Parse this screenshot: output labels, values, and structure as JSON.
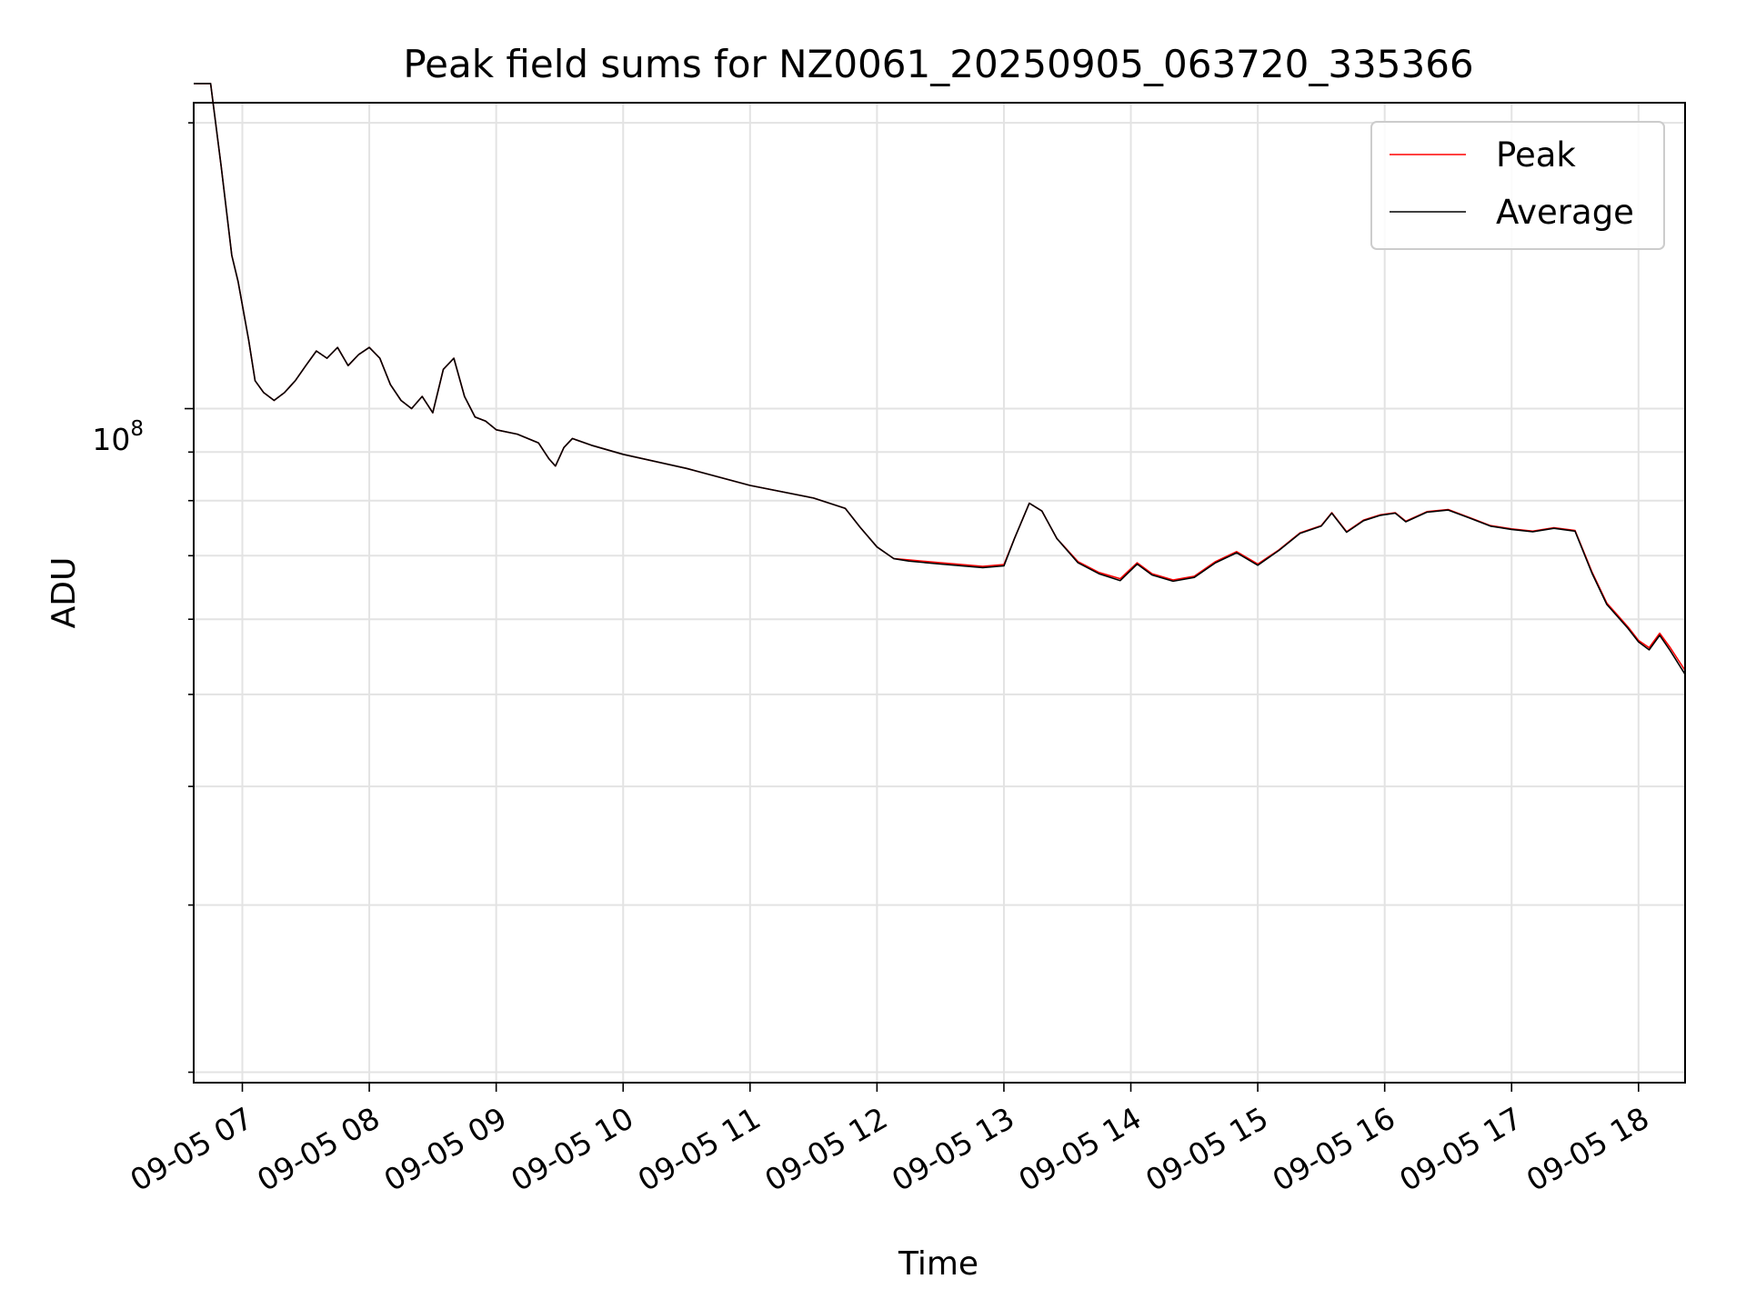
{
  "chart_data": {
    "type": "line",
    "title": "Peak field sums for NZ0061_20250905_063720_335366",
    "xlabel": "Time",
    "ylabel": "ADU",
    "yscale": "log",
    "grid": true,
    "legend_position": "top-right",
    "x_ticks": [
      "09-05 07",
      "09-05 08",
      "09-05 09",
      "09-05 10",
      "09-05 11",
      "09-05 12",
      "09-05 13",
      "09-05 14",
      "09-05 15",
      "09-05 16",
      "09-05 17",
      "09-05 18"
    ],
    "y_tick_label_base": "10",
    "y_tick_label_exp": "8",
    "xlim": [
      "2025-09-05 06:37",
      "2025-09-05 18:22"
    ],
    "ylim": [
      19500000,
      210000000
    ],
    "series": [
      {
        "name": "Peak",
        "color": "#ff0000",
        "points": [
          [
            "2025-09-05 06:37",
            220000000
          ],
          [
            "2025-09-05 06:45",
            220000000
          ],
          [
            "2025-09-05 06:50",
            180000000
          ],
          [
            "2025-09-05 06:55",
            145000000
          ],
          [
            "2025-09-05 06:58",
            136000000
          ],
          [
            "2025-09-05 07:03",
            118000000
          ],
          [
            "2025-09-05 07:06",
            107000000
          ],
          [
            "2025-09-05 07:10",
            104000000
          ],
          [
            "2025-09-05 07:15",
            102000000
          ],
          [
            "2025-09-05 07:20",
            104000000
          ],
          [
            "2025-09-05 07:25",
            107000000
          ],
          [
            "2025-09-05 07:30",
            111000000
          ],
          [
            "2025-09-05 07:35",
            115000000
          ],
          [
            "2025-09-05 07:40",
            113000000
          ],
          [
            "2025-09-05 07:45",
            116000000
          ],
          [
            "2025-09-05 07:50",
            111000000
          ],
          [
            "2025-09-05 07:55",
            114000000
          ],
          [
            "2025-09-05 08:00",
            116000000
          ],
          [
            "2025-09-05 08:05",
            113000000
          ],
          [
            "2025-09-05 08:10",
            106000000
          ],
          [
            "2025-09-05 08:15",
            102000000
          ],
          [
            "2025-09-05 08:20",
            100000000
          ],
          [
            "2025-09-05 08:25",
            103000000
          ],
          [
            "2025-09-05 08:30",
            99000000
          ],
          [
            "2025-09-05 08:35",
            110000000
          ],
          [
            "2025-09-05 08:40",
            113000000
          ],
          [
            "2025-09-05 08:45",
            103000000
          ],
          [
            "2025-09-05 08:50",
            98000000
          ],
          [
            "2025-09-05 08:55",
            97000000
          ],
          [
            "2025-09-05 09:00",
            95000000
          ],
          [
            "2025-09-05 09:10",
            94000000
          ],
          [
            "2025-09-05 09:20",
            92000000
          ],
          [
            "2025-09-05 09:25",
            88500000
          ],
          [
            "2025-09-05 09:28",
            87000000
          ],
          [
            "2025-09-05 09:32",
            91000000
          ],
          [
            "2025-09-05 09:36",
            93000000
          ],
          [
            "2025-09-05 09:45",
            91500000
          ],
          [
            "2025-09-05 10:00",
            89500000
          ],
          [
            "2025-09-05 10:30",
            86500000
          ],
          [
            "2025-09-05 11:00",
            83000000
          ],
          [
            "2025-09-05 11:30",
            80500000
          ],
          [
            "2025-09-05 11:45",
            78500000
          ],
          [
            "2025-09-05 11:52",
            75000000
          ],
          [
            "2025-09-05 12:00",
            71500000
          ],
          [
            "2025-09-05 12:08",
            69500000
          ],
          [
            "2025-09-05 12:15",
            69300000
          ],
          [
            "2025-09-05 12:30",
            68800000
          ],
          [
            "2025-09-05 12:50",
            68200000
          ],
          [
            "2025-09-05 13:00",
            68500000
          ],
          [
            "2025-09-05 13:05",
            73000000
          ],
          [
            "2025-09-05 13:12",
            79500000
          ],
          [
            "2025-09-05 13:18",
            78000000
          ],
          [
            "2025-09-05 13:25",
            73000000
          ],
          [
            "2025-09-05 13:35",
            69000000
          ],
          [
            "2025-09-05 13:45",
            67200000
          ],
          [
            "2025-09-05 13:55",
            66200000
          ],
          [
            "2025-09-05 14:03",
            68800000
          ],
          [
            "2025-09-05 14:10",
            67000000
          ],
          [
            "2025-09-05 14:20",
            66000000
          ],
          [
            "2025-09-05 14:30",
            66600000
          ],
          [
            "2025-09-05 14:40",
            69000000
          ],
          [
            "2025-09-05 14:50",
            70700000
          ],
          [
            "2025-09-05 15:00",
            68600000
          ],
          [
            "2025-09-05 15:10",
            71000000
          ],
          [
            "2025-09-05 15:20",
            74000000
          ],
          [
            "2025-09-05 15:30",
            75300000
          ],
          [
            "2025-09-05 15:35",
            77700000
          ],
          [
            "2025-09-05 15:42",
            74200000
          ],
          [
            "2025-09-05 15:50",
            76300000
          ],
          [
            "2025-09-05 15:58",
            77300000
          ],
          [
            "2025-09-05 16:05",
            77700000
          ],
          [
            "2025-09-05 16:10",
            76100000
          ],
          [
            "2025-09-05 16:20",
            77900000
          ],
          [
            "2025-09-05 16:30",
            78300000
          ],
          [
            "2025-09-05 16:40",
            76800000
          ],
          [
            "2025-09-05 16:50",
            75300000
          ],
          [
            "2025-09-05 17:00",
            74700000
          ],
          [
            "2025-09-05 17:10",
            74300000
          ],
          [
            "2025-09-05 17:20",
            74900000
          ],
          [
            "2025-09-05 17:30",
            74400000
          ],
          [
            "2025-09-05 17:38",
            67300000
          ],
          [
            "2025-09-05 17:45",
            62400000
          ],
          [
            "2025-09-05 17:55",
            58900000
          ],
          [
            "2025-09-05 18:00",
            57000000
          ],
          [
            "2025-09-05 18:05",
            56000000
          ],
          [
            "2025-09-05 18:10",
            58000000
          ],
          [
            "2025-09-05 18:15",
            56000000
          ],
          [
            "2025-09-05 18:22",
            53000000
          ]
        ]
      },
      {
        "name": "Average",
        "color": "#000000",
        "points": [
          [
            "2025-09-05 06:37",
            220000000
          ],
          [
            "2025-09-05 06:45",
            220000000
          ],
          [
            "2025-09-05 06:50",
            180000000
          ],
          [
            "2025-09-05 06:55",
            145000000
          ],
          [
            "2025-09-05 06:58",
            136000000
          ],
          [
            "2025-09-05 07:03",
            118000000
          ],
          [
            "2025-09-05 07:06",
            107000000
          ],
          [
            "2025-09-05 07:10",
            104000000
          ],
          [
            "2025-09-05 07:15",
            102000000
          ],
          [
            "2025-09-05 07:20",
            104000000
          ],
          [
            "2025-09-05 07:25",
            107000000
          ],
          [
            "2025-09-05 07:30",
            111000000
          ],
          [
            "2025-09-05 07:35",
            115000000
          ],
          [
            "2025-09-05 07:40",
            113000000
          ],
          [
            "2025-09-05 07:45",
            116000000
          ],
          [
            "2025-09-05 07:50",
            111000000
          ],
          [
            "2025-09-05 07:55",
            114000000
          ],
          [
            "2025-09-05 08:00",
            116000000
          ],
          [
            "2025-09-05 08:05",
            113000000
          ],
          [
            "2025-09-05 08:10",
            106000000
          ],
          [
            "2025-09-05 08:15",
            102000000
          ],
          [
            "2025-09-05 08:20",
            100000000
          ],
          [
            "2025-09-05 08:25",
            103000000
          ],
          [
            "2025-09-05 08:30",
            99000000
          ],
          [
            "2025-09-05 08:35",
            110000000
          ],
          [
            "2025-09-05 08:40",
            113000000
          ],
          [
            "2025-09-05 08:45",
            103000000
          ],
          [
            "2025-09-05 08:50",
            98000000
          ],
          [
            "2025-09-05 08:55",
            97000000
          ],
          [
            "2025-09-05 09:00",
            95000000
          ],
          [
            "2025-09-05 09:10",
            94000000
          ],
          [
            "2025-09-05 09:20",
            92000000
          ],
          [
            "2025-09-05 09:25",
            88500000
          ],
          [
            "2025-09-05 09:28",
            87000000
          ],
          [
            "2025-09-05 09:32",
            91000000
          ],
          [
            "2025-09-05 09:36",
            93000000
          ],
          [
            "2025-09-05 09:45",
            91500000
          ],
          [
            "2025-09-05 10:00",
            89500000
          ],
          [
            "2025-09-05 10:30",
            86500000
          ],
          [
            "2025-09-05 11:00",
            83000000
          ],
          [
            "2025-09-05 11:30",
            80500000
          ],
          [
            "2025-09-05 11:45",
            78500000
          ],
          [
            "2025-09-05 11:52",
            75000000
          ],
          [
            "2025-09-05 12:00",
            71500000
          ],
          [
            "2025-09-05 12:08",
            69500000
          ],
          [
            "2025-09-05 12:15",
            69100000
          ],
          [
            "2025-09-05 12:30",
            68600000
          ],
          [
            "2025-09-05 12:50",
            68000000
          ],
          [
            "2025-09-05 13:00",
            68300000
          ],
          [
            "2025-09-05 13:05",
            73000000
          ],
          [
            "2025-09-05 13:12",
            79500000
          ],
          [
            "2025-09-05 13:18",
            78000000
          ],
          [
            "2025-09-05 13:25",
            73000000
          ],
          [
            "2025-09-05 13:35",
            68800000
          ],
          [
            "2025-09-05 13:45",
            67000000
          ],
          [
            "2025-09-05 13:55",
            65900000
          ],
          [
            "2025-09-05 14:03",
            68600000
          ],
          [
            "2025-09-05 14:10",
            66800000
          ],
          [
            "2025-09-05 14:20",
            65800000
          ],
          [
            "2025-09-05 14:30",
            66400000
          ],
          [
            "2025-09-05 14:40",
            68800000
          ],
          [
            "2025-09-05 14:50",
            70500000
          ],
          [
            "2025-09-05 15:00",
            68400000
          ],
          [
            "2025-09-05 15:10",
            70900000
          ],
          [
            "2025-09-05 15:20",
            73900000
          ],
          [
            "2025-09-05 15:30",
            75200000
          ],
          [
            "2025-09-05 15:35",
            77600000
          ],
          [
            "2025-09-05 15:42",
            74100000
          ],
          [
            "2025-09-05 15:50",
            76200000
          ],
          [
            "2025-09-05 15:58",
            77200000
          ],
          [
            "2025-09-05 16:05",
            77600000
          ],
          [
            "2025-09-05 16:10",
            76000000
          ],
          [
            "2025-09-05 16:20",
            77800000
          ],
          [
            "2025-09-05 16:30",
            78200000
          ],
          [
            "2025-09-05 16:40",
            76700000
          ],
          [
            "2025-09-05 16:50",
            75200000
          ],
          [
            "2025-09-05 17:00",
            74600000
          ],
          [
            "2025-09-05 17:10",
            74200000
          ],
          [
            "2025-09-05 17:20",
            74800000
          ],
          [
            "2025-09-05 17:30",
            74300000
          ],
          [
            "2025-09-05 17:38",
            67100000
          ],
          [
            "2025-09-05 17:45",
            62200000
          ],
          [
            "2025-09-05 17:55",
            58700000
          ],
          [
            "2025-09-05 18:00",
            56800000
          ],
          [
            "2025-09-05 18:05",
            55700000
          ],
          [
            "2025-09-05 18:10",
            57700000
          ],
          [
            "2025-09-05 18:15",
            55600000
          ],
          [
            "2025-09-05 18:22",
            52500000
          ]
        ]
      }
    ]
  }
}
